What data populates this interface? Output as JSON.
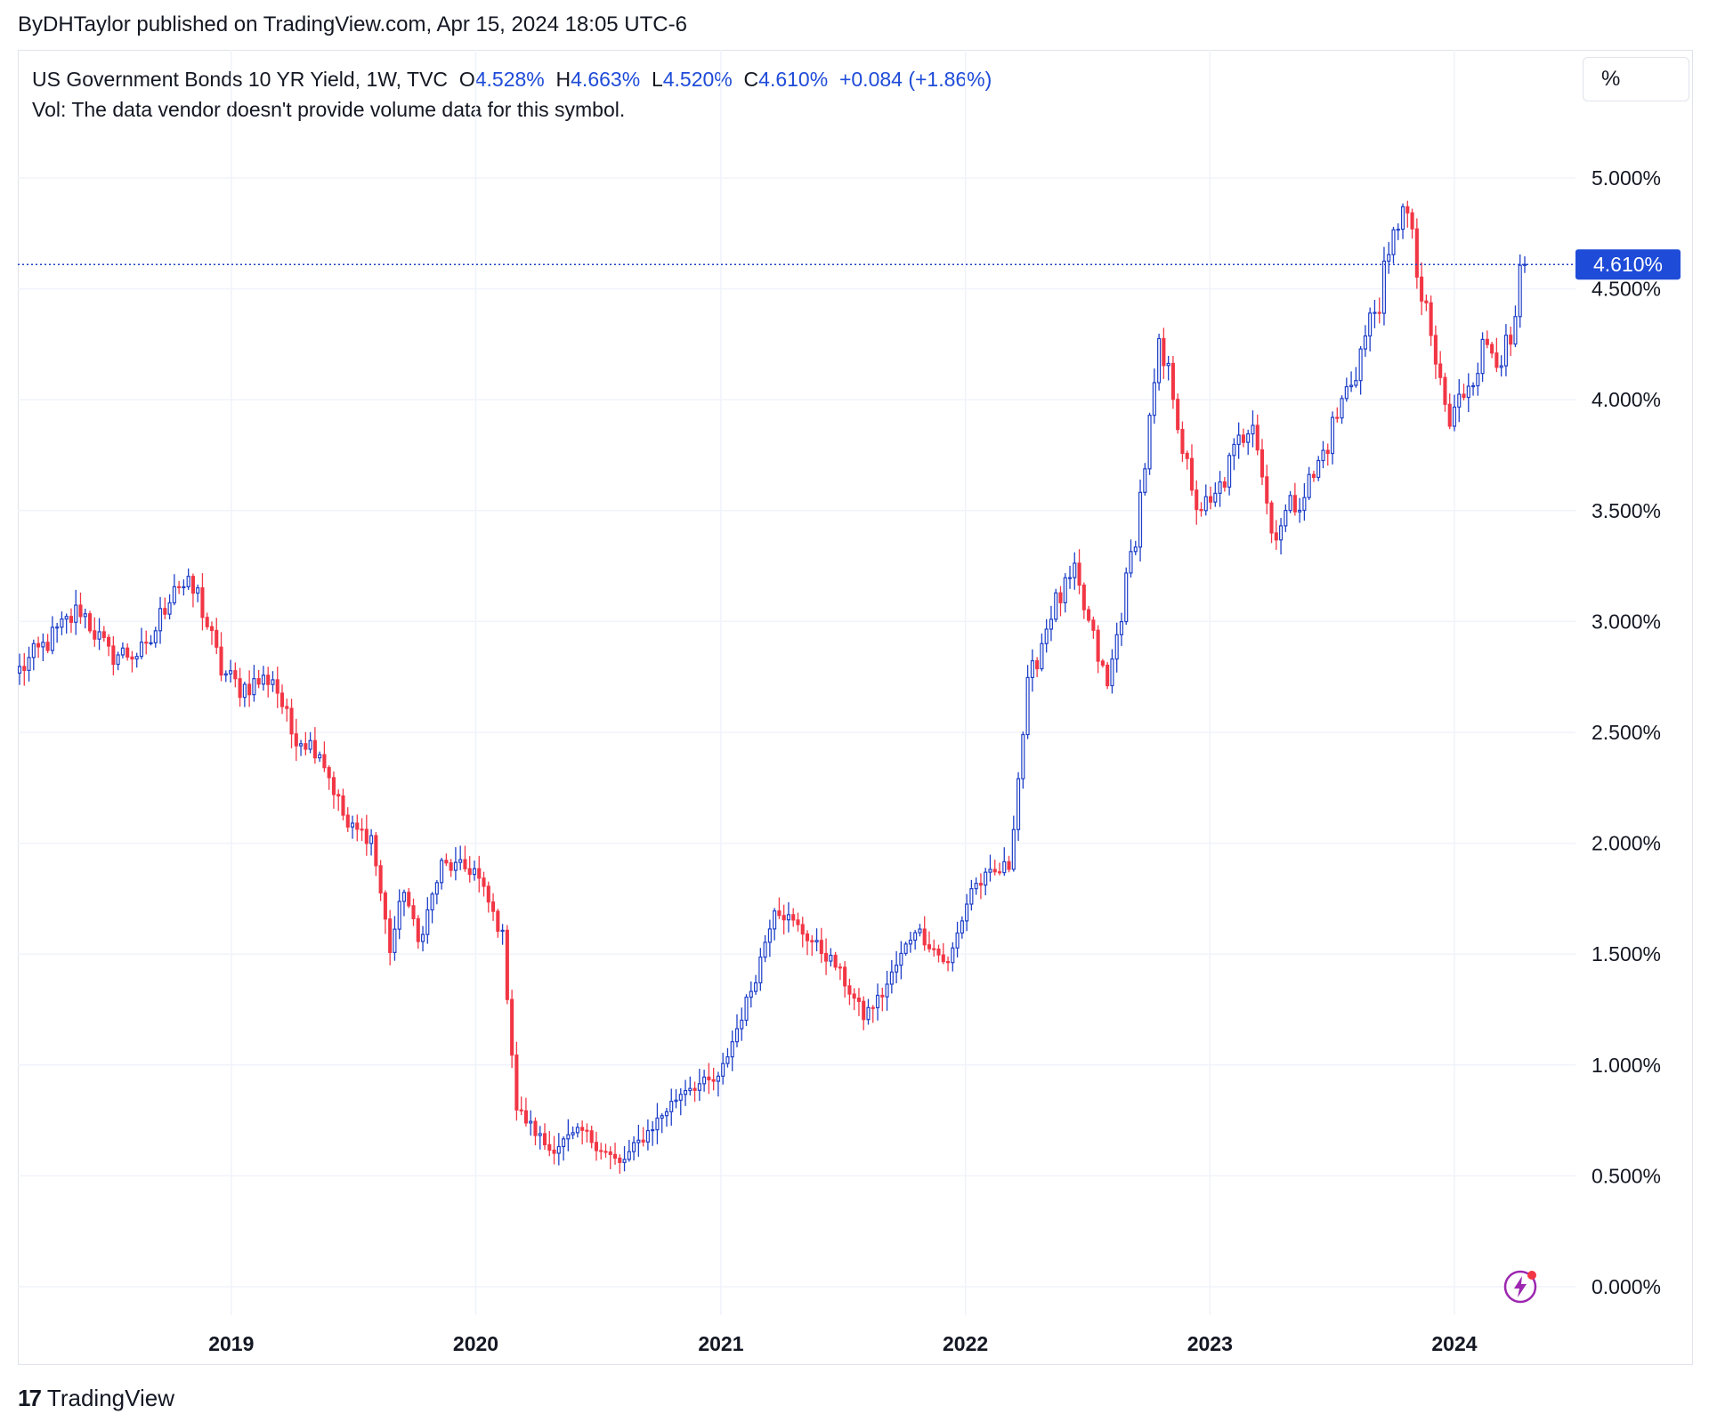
{
  "header": {
    "publisher_line": "ByDHTaylor published on TradingView.com, Apr 15, 2024 18:05 UTC-6"
  },
  "legend": {
    "symbol": "US Government Bonds 10 YR Yield, 1W, TVC",
    "open_label": "O",
    "open_value": "4.528%",
    "high_label": "H",
    "high_value": "4.663%",
    "low_label": "L",
    "low_value": "4.520%",
    "close_label": "C",
    "close_value": "4.610%",
    "change": "+0.084 (+1.86%)",
    "volume_note": "Vol: The data vendor doesn't provide volume data for this symbol."
  },
  "unit_button": "%",
  "last_price_label": "4.610%",
  "footer": {
    "logo_mark": "17",
    "brand": "TradingView"
  },
  "colors": {
    "up": "#1e3fc8",
    "down": "#f23645",
    "grid": "#f0f3fa",
    "price_line": "#1e3fc8",
    "price_tag_bg": "#1e4bd8",
    "bolt": "#9c27b0"
  },
  "chart_data": {
    "type": "candlestick",
    "interval": "1W",
    "x_axis_labels": [
      "2019",
      "2020",
      "2021",
      "2022",
      "2023",
      "2024"
    ],
    "y_axis_labels": [
      "5.000%",
      "4.500%",
      "4.000%",
      "3.500%",
      "3.000%",
      "2.500%",
      "2.000%",
      "1.500%",
      "1.000%",
      "0.500%",
      "0.000%"
    ],
    "ylim": [
      0,
      5
    ],
    "x_start": "2018-02-19",
    "x_end": "2024-04-15",
    "grid": true,
    "last_close": 4.61,
    "anchors": [
      [
        "2018-02-19",
        2.78
      ],
      [
        "2018-04-16",
        2.95
      ],
      [
        "2018-05-21",
        3.06
      ],
      [
        "2018-07-02",
        2.85
      ],
      [
        "2018-08-27",
        2.86
      ],
      [
        "2018-10-08",
        3.18
      ],
      [
        "2018-11-12",
        3.12
      ],
      [
        "2018-12-17",
        2.78
      ],
      [
        "2019-01-14",
        2.7
      ],
      [
        "2019-03-04",
        2.75
      ],
      [
        "2019-04-01",
        2.5
      ],
      [
        "2019-05-13",
        2.42
      ],
      [
        "2019-06-24",
        2.07
      ],
      [
        "2019-07-29",
        2.03
      ],
      [
        "2019-08-26",
        1.52
      ],
      [
        "2019-09-16",
        1.8
      ],
      [
        "2019-10-07",
        1.55
      ],
      [
        "2019-11-11",
        1.9
      ],
      [
        "2019-12-30",
        1.88
      ],
      [
        "2020-02-10",
        1.58
      ],
      [
        "2020-03-02",
        0.8
      ],
      [
        "2020-03-16",
        0.75
      ],
      [
        "2020-04-20",
        0.62
      ],
      [
        "2020-06-08",
        0.7
      ],
      [
        "2020-08-03",
        0.55
      ],
      [
        "2020-09-14",
        0.7
      ],
      [
        "2020-11-09",
        0.9
      ],
      [
        "2020-12-28",
        0.93
      ],
      [
        "2021-02-22",
        1.4
      ],
      [
        "2021-03-22",
        1.72
      ],
      [
        "2021-05-03",
        1.6
      ],
      [
        "2021-06-21",
        1.45
      ],
      [
        "2021-08-02",
        1.22
      ],
      [
        "2021-08-30",
        1.32
      ],
      [
        "2021-10-18",
        1.62
      ],
      [
        "2021-12-06",
        1.45
      ],
      [
        "2022-01-10",
        1.8
      ],
      [
        "2022-03-07",
        1.9
      ],
      [
        "2022-04-04",
        2.7
      ],
      [
        "2022-05-09",
        3.05
      ],
      [
        "2022-06-13",
        3.2
      ],
      [
        "2022-08-01",
        2.7
      ],
      [
        "2022-09-12",
        3.4
      ],
      [
        "2022-10-17",
        4.2
      ],
      [
        "2022-11-07",
        4.05
      ],
      [
        "2022-12-05",
        3.55
      ],
      [
        "2023-01-02",
        3.5
      ],
      [
        "2023-03-06",
        3.95
      ],
      [
        "2023-04-03",
        3.4
      ],
      [
        "2023-06-05",
        3.65
      ],
      [
        "2023-08-07",
        4.15
      ],
      [
        "2023-09-25",
        4.6
      ],
      [
        "2023-10-16",
        4.93
      ],
      [
        "2023-11-13",
        4.45
      ],
      [
        "2023-12-25",
        3.88
      ],
      [
        "2024-01-22",
        4.1
      ],
      [
        "2024-02-19",
        4.25
      ],
      [
        "2024-03-25",
        4.2
      ],
      [
        "2024-04-08",
        4.52
      ],
      [
        "2024-04-15",
        4.61
      ]
    ]
  }
}
